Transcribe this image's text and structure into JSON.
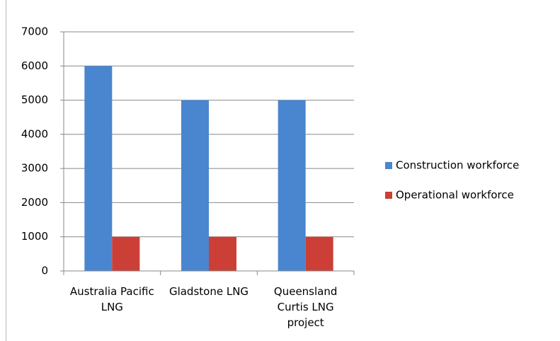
{
  "chart_data": {
    "type": "bar",
    "categories": [
      "Australia Pacific LNG",
      "Gladstone LNG",
      "Queensland Curtis LNG project"
    ],
    "series": [
      {
        "name": "Construction workforce",
        "color": "#4a86cf",
        "values": [
          6000,
          5000,
          5000
        ]
      },
      {
        "name": "Operational workforce",
        "color": "#cc3f36",
        "values": [
          1000,
          1000,
          1000
        ]
      }
    ],
    "ylim": [
      0,
      7000
    ],
    "yticks": [
      0,
      1000,
      2000,
      3000,
      4000,
      5000,
      6000,
      7000
    ],
    "grid": true,
    "legend": "right"
  }
}
